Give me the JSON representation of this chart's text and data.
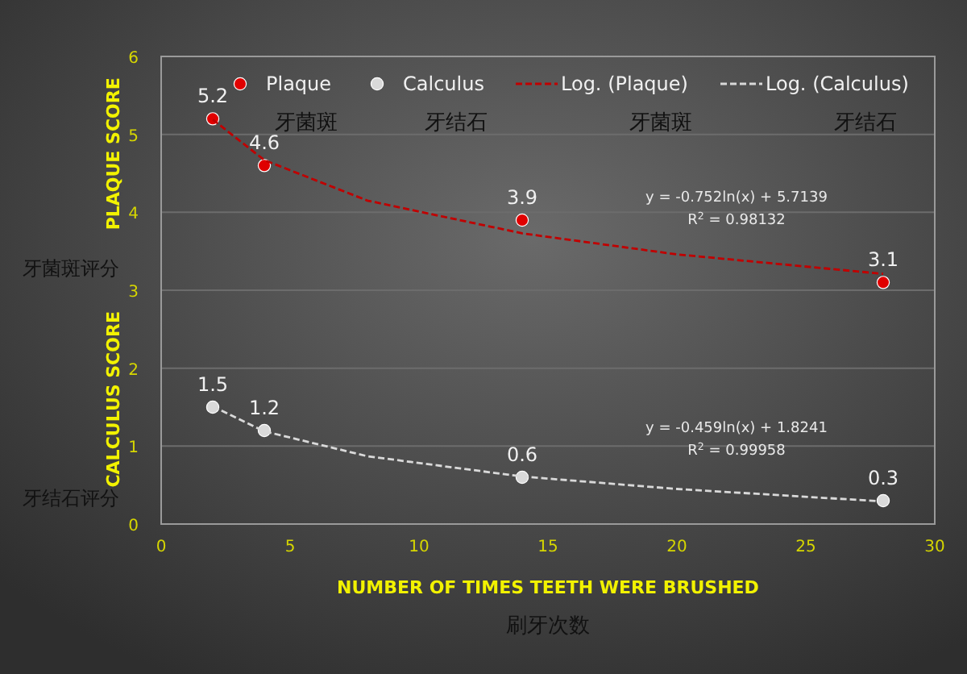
{
  "chart_data": {
    "type": "scatter",
    "xlabel": "NUMBER OF TIMES TEETH WERE BRUSHED",
    "ylabel": "PLAQUE SCORE",
    "x": [
      2,
      4,
      14,
      28
    ],
    "series": [
      {
        "name": "Plaque",
        "color": "#e00000",
        "values": [
          5.2,
          4.6,
          3.9,
          3.1
        ],
        "value_labels": [
          "5.2",
          "4.6",
          "3.9",
          "3.1"
        ]
      },
      {
        "name": "Calculus",
        "color": "#d9d9d9",
        "values": [
          1.5,
          1.2,
          0.6,
          0.3
        ],
        "value_labels": [
          "1.5",
          "1.2",
          "0.6",
          "0.3"
        ]
      },
      {
        "name": "Log. (Plaque)",
        "type": "line",
        "color": "#c00000",
        "line_style": "dashed",
        "marker": "none",
        "x": [
          2,
          4,
          8,
          14,
          20,
          28
        ],
        "values": [
          5.19,
          4.67,
          4.15,
          3.73,
          3.46,
          3.21
        ]
      },
      {
        "name": "Log. (Calculus)",
        "type": "line",
        "color": "#d9d9d9",
        "line_style": "dashed",
        "marker": "none",
        "x": [
          2,
          4,
          8,
          14,
          20,
          28
        ],
        "values": [
          1.51,
          1.19,
          0.87,
          0.61,
          0.45,
          0.29
        ]
      }
    ],
    "marker": "circle",
    "grid": "y",
    "legend": "top",
    "xlim": [
      0,
      30
    ],
    "xticks": [
      0,
      5,
      10,
      15,
      20,
      25,
      30
    ],
    "ylim": [
      0,
      6
    ],
    "yticks": [
      0,
      1,
      2,
      3,
      4,
      5,
      6
    ],
    "annotations": [
      "CALCULUS SCORE",
      "牙菌斑评分",
      "牙结石评分",
      "刷牙次数",
      "牙菌斑",
      "牙结石",
      "牙菌斑",
      "牙结石",
      "y = -0.752ln(x) + 5.7139",
      "R$^{2}$ = 0.98132",
      "y = -0.459ln(x) + 1.8241",
      "R$^{2}$ = 0.99958"
    ]
  }
}
